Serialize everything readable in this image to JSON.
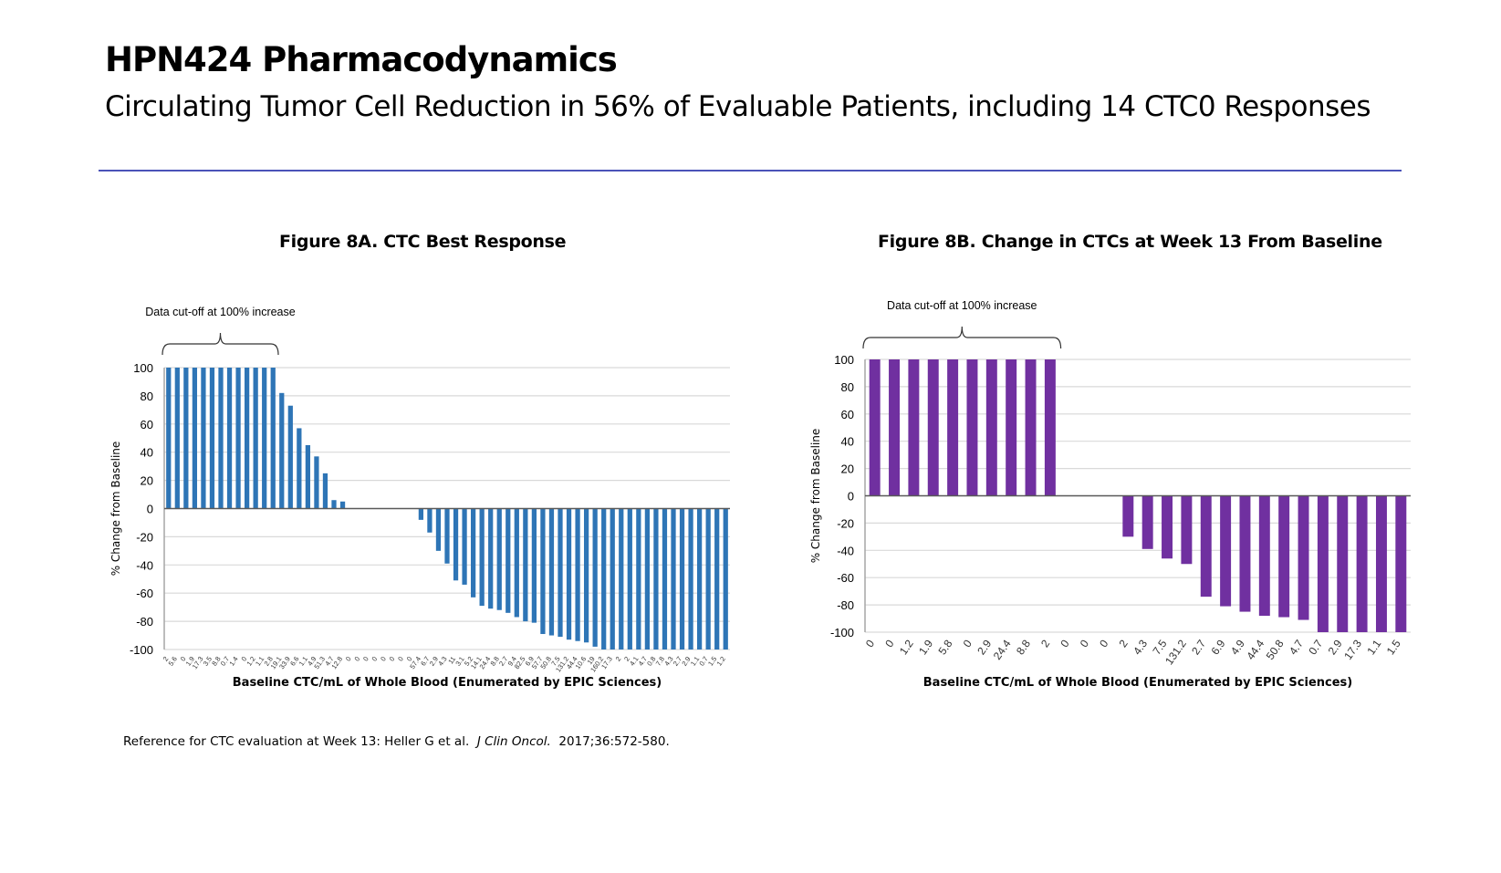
{
  "slide": {
    "title": "HPN424 Pharmacodynamics",
    "subtitle": "Circulating Tumor Cell Reduction in 56% of Evaluable Patients, including 14 CTC0 Responses",
    "reference_prefix": "Reference for CTC evaluation at Week 13: Heller G et al.",
    "reference_journal": "J Clin Oncol.",
    "reference_suffix": "2017;36:572-580.",
    "rule_color": "#4a52b8"
  },
  "chart_data": [
    {
      "type": "bar",
      "title": "Figure 8A. CTC Best Response",
      "xlabel": "Baseline CTC/mL of Whole Blood (Enumerated by EPIC Sciences)",
      "ylabel": "% Change from Baseline",
      "ylim": [
        -100,
        100
      ],
      "yticks": [
        100,
        80,
        60,
        40,
        20,
        0,
        -20,
        -40,
        -60,
        -80,
        -100
      ],
      "grid": true,
      "color": "#2e75b6",
      "annotation": "Data cut-off at 100% increase",
      "annotation_span_bars": 13,
      "categories": [
        "2",
        "5.6",
        "0",
        "1.9",
        "17.3",
        "3.5",
        "8.8",
        "0.7",
        "1.4",
        "0",
        "1.2",
        "1.1",
        "2.8",
        "19.1",
        "33.9",
        "6.6",
        "1.1",
        "4.9",
        "51.3",
        "4.7",
        "12.8",
        "0",
        "0",
        "0",
        "0",
        "0",
        "0",
        "0",
        "0",
        "57.4",
        "6.7",
        "2.9",
        "4.3",
        "11",
        "3.1",
        "5.2",
        "14.1",
        "24.4",
        "8.8",
        "2.7",
        "9.4",
        "82.5",
        "6.9",
        "57.7",
        "50.8",
        "7.5",
        "131.2",
        "44.4",
        "10.6",
        "19",
        "160.2",
        "17.3",
        "2",
        "2",
        "4.1",
        "4.7",
        "0.8",
        "7.8",
        "4.3",
        "2.7",
        "2.9",
        "1.1",
        "0.7",
        "1.5",
        "1.2"
      ],
      "values": [
        100,
        100,
        100,
        100,
        100,
        100,
        100,
        100,
        100,
        100,
        100,
        100,
        100,
        82,
        73,
        57,
        45,
        37,
        25,
        6,
        5,
        0,
        0,
        0,
        0,
        0,
        0,
        0,
        0,
        -8,
        -17,
        -30,
        -39,
        -51,
        -54,
        -63,
        -69,
        -71,
        -72,
        -74,
        -77,
        -80,
        -81,
        -89,
        -90,
        -91,
        -93,
        -94,
        -95,
        -98,
        -100,
        -100,
        -100,
        -100,
        -100,
        -100,
        -100,
        -100,
        -100,
        -100,
        -100,
        -100,
        -100,
        -100,
        -100
      ]
    },
    {
      "type": "bar",
      "title": "Figure 8B. Change in CTCs at Week 13 From Baseline",
      "xlabel": "Baseline CTC/mL of Whole Blood (Enumerated by EPIC Sciences)",
      "ylabel": "% Change from Baseline",
      "ylim": [
        -100,
        100
      ],
      "yticks": [
        100,
        80,
        60,
        40,
        20,
        0,
        -20,
        -40,
        -60,
        -80,
        -100
      ],
      "grid": true,
      "color": "#7030a0",
      "annotation": "Data cut-off at 100% increase",
      "annotation_span_bars": 10,
      "categories": [
        "0",
        "0",
        "1.2",
        "1.9",
        "5.8",
        "0",
        "2.9",
        "24.4",
        "8.8",
        "2",
        "0",
        "0",
        "0",
        "2",
        "4.3",
        "7.5",
        "131.2",
        "2.7",
        "6.9",
        "4.9",
        "44.4",
        "50.8",
        "4.7",
        "0.7",
        "2.9",
        "17.3",
        "1.1",
        "1.5"
      ],
      "values": [
        100,
        100,
        100,
        100,
        100,
        100,
        100,
        100,
        100,
        100,
        0,
        0,
        0,
        -30,
        -39,
        -46,
        -50,
        -74,
        -81,
        -85,
        -88,
        -89,
        -91,
        -100,
        -100,
        -100,
        -100,
        -100
      ]
    }
  ]
}
